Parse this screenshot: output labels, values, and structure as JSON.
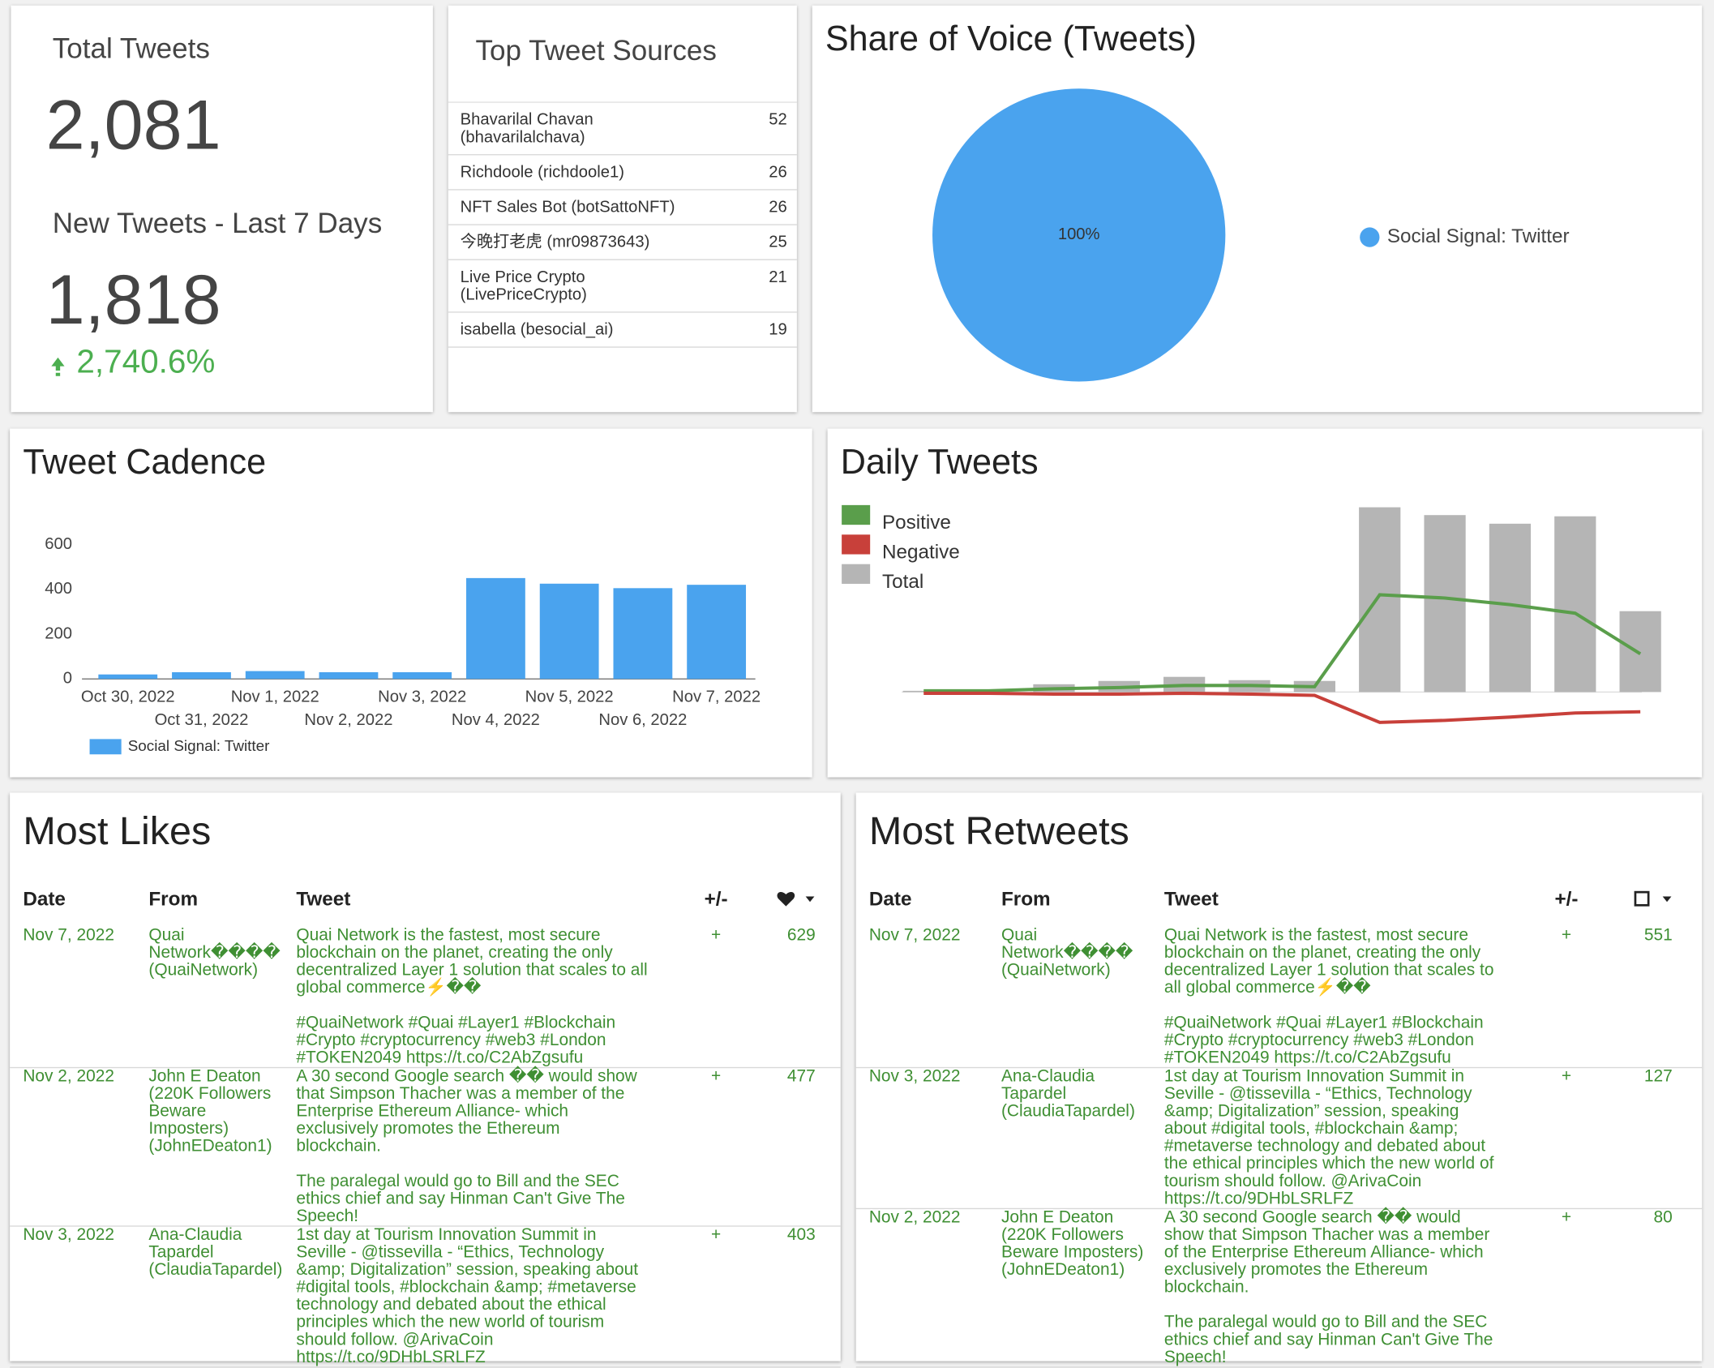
{
  "total_tweets": {
    "title": "Total Tweets",
    "value": "2,081",
    "new_title": "New Tweets - Last 7 Days",
    "new_value": "1,818",
    "change": "2,740.6%"
  },
  "top_sources": {
    "title": "Top Tweet Sources",
    "rows": [
      {
        "name": "Bhavarilal Chavan (bhavarilalchava)",
        "count": 52
      },
      {
        "name": "Richdoole (richdoole1)",
        "count": 26
      },
      {
        "name": "NFT Sales Bot (botSattoNFT)",
        "count": 26
      },
      {
        "name": "今晚打老虎 (mr09873643)",
        "count": 25
      },
      {
        "name": "Live Price Crypto (LivePriceCrypto)",
        "count": 21
      },
      {
        "name": "isabella (besocial_ai)",
        "count": 19
      }
    ]
  },
  "share_of_voice": {
    "type": "pie",
    "title": "Share of Voice (Tweets)",
    "categories": [
      "Social Signal: Twitter"
    ],
    "values": [
      100
    ],
    "value_labels": [
      "100%"
    ],
    "colors": [
      "#4aa3ee"
    ]
  },
  "tweet_cadence": {
    "type": "bar",
    "title": "Tweet Cadence",
    "categories": [
      "Oct 30, 2022",
      "Oct 31, 2022",
      "Nov 1, 2022",
      "Nov 2, 2022",
      "Nov 3, 2022",
      "Nov 4, 2022",
      "Nov 5, 2022",
      "Nov 6, 2022",
      "Nov 7, 2022"
    ],
    "series": [
      {
        "name": "Social Signal: Twitter",
        "color": "#4aa3ee",
        "values": [
          20,
          30,
          35,
          30,
          30,
          450,
          425,
          405,
          420
        ]
      }
    ],
    "ylim": [
      0,
      600
    ],
    "yticks": [
      0,
      200,
      400,
      600
    ]
  },
  "daily_tweets": {
    "type": "bar_line",
    "title": "Daily Tweets",
    "series": [
      {
        "name": "Positive",
        "color": "#5a9e4b",
        "kind": "line",
        "values": [
          3,
          3,
          8,
          11,
          16,
          16,
          13,
          237,
          229,
          213,
          192,
          93
        ]
      },
      {
        "name": "Negative",
        "color": "#c8403a",
        "kind": "line",
        "values": [
          -3,
          -3,
          -5,
          -5,
          -3,
          -5,
          -8,
          -74,
          -69,
          -61,
          -51,
          -48
        ]
      },
      {
        "name": "Total",
        "color": "#b5b5b5",
        "kind": "bar",
        "values": [
          3,
          3,
          19,
          27,
          37,
          29,
          27,
          450,
          431,
          410,
          428,
          197
        ]
      }
    ]
  },
  "most_likes": {
    "title": "Most Likes",
    "columns": [
      "Date",
      "From",
      "Tweet",
      "+/-"
    ],
    "rows": [
      [
        "Nov 7, 2022",
        "Quai Network���� (QuaiNetwork)",
        "Quai Network is the fastest, most secure blockchain on the planet, creating the only decentralized Layer 1 solution that scales to all global commerce⚡��\n\n#QuaiNetwork #Quai #Layer1 #Blockchain #Crypto #cryptocurrency #web3 #London #TOKEN2049 https://t.co/C2AbZgsufu",
        "+",
        629
      ],
      [
        "Nov 2, 2022",
        "John E Deaton (220K Followers Beware Imposters) (JohnEDeaton1)",
        "A 30 second Google search �� would show that Simpson Thacher was a member of the Enterprise Ethereum Alliance- which exclusively promotes the Ethereum blockchain.\n\nThe paralegal would go to Bill and the SEC ethics chief and say Hinman Can't Give The Speech!",
        "+",
        477
      ],
      [
        "Nov 3, 2022",
        "Ana-Claudia Tapardel (ClaudiaTapardel)",
        "1st day at Tourism Innovation Summit in Seville - @tissevilla - “Ethics, Technology &amp; Digitalization” session, speaking about #digital tools, #blockchain &amp; #metaverse technology and debated about the ethical principles which the new world of tourism should follow. @ArivaCoin https://t.co/9DHbLSRLFZ",
        "+",
        403
      ]
    ]
  },
  "most_retweets": {
    "title": "Most Retweets",
    "columns": [
      "Date",
      "From",
      "Tweet",
      "+/-"
    ],
    "rows": [
      [
        "Nov 7, 2022",
        "Quai Network���� (QuaiNetwork)",
        "Quai Network is the fastest, most secure blockchain on the planet, creating the only decentralized Layer 1 solution that scales to all global commerce⚡��\n\n#QuaiNetwork #Quai #Layer1 #Blockchain #Crypto #cryptocurrency #web3 #London #TOKEN2049 https://t.co/C2AbZgsufu",
        "+",
        551
      ],
      [
        "Nov 3, 2022",
        "Ana-Claudia Tapardel (ClaudiaTapardel)",
        "1st day at Tourism Innovation Summit in Seville - @tissevilla - “Ethics, Technology &amp; Digitalization” session, speaking about #digital tools, #blockchain &amp; #metaverse technology and debated about the ethical principles which the new world of tourism should follow. @ArivaCoin https://t.co/9DHbLSRLFZ",
        "+",
        127
      ],
      [
        "Nov 2, 2022",
        "John E Deaton (220K Followers Beware Imposters) (JohnEDeaton1)",
        "A 30 second Google search �� would show that Simpson Thacher was a member of the Enterprise Ethereum Alliance- which exclusively promotes the Ethereum blockchain.\n\nThe paralegal would go to Bill and the SEC ethics chief and say Hinman Can't Give The Speech!",
        "+",
        80
      ]
    ]
  }
}
